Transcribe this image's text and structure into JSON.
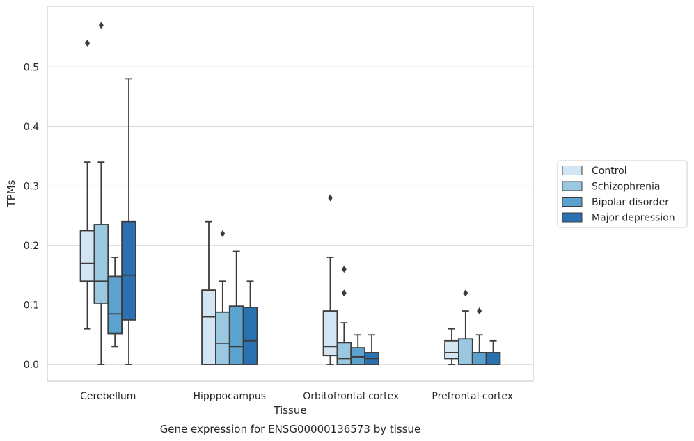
{
  "chart_data": {
    "type": "box",
    "xlabel": "Tissue",
    "ylabel": "TPMs",
    "caption": "Gene expression for ENSG00000136573 by tissue",
    "categories": [
      "Cerebellum",
      "Hipppocampus",
      "Orbitofrontal cortex",
      "Prefrontal cortex"
    ],
    "ylim": [
      -0.028,
      0.602
    ],
    "yticks": [
      0.0,
      0.1,
      0.2,
      0.3,
      0.4,
      0.5
    ],
    "ytick_labels": [
      "0.0",
      "0.1",
      "0.2",
      "0.3",
      "0.4",
      "0.5"
    ],
    "grid": "horizontal",
    "legend_position": "right",
    "series": [
      {
        "name": "Control",
        "color": "#d3e4f3",
        "boxes": [
          {
            "whisker_low": 0.06,
            "q1": 0.14,
            "median": 0.17,
            "q3": 0.225,
            "whisker_high": 0.34,
            "outliers": [
              0.54
            ]
          },
          {
            "whisker_low": 0.0,
            "q1": 0.0,
            "median": 0.08,
            "q3": 0.125,
            "whisker_high": 0.24,
            "outliers": []
          },
          {
            "whisker_low": 0.0,
            "q1": 0.015,
            "median": 0.03,
            "q3": 0.09,
            "whisker_high": 0.18,
            "outliers": [
              0.28
            ]
          },
          {
            "whisker_low": 0.0,
            "q1": 0.01,
            "median": 0.02,
            "q3": 0.04,
            "whisker_high": 0.06,
            "outliers": []
          }
        ]
      },
      {
        "name": "Schizophrenia",
        "color": "#9ac8e0",
        "boxes": [
          {
            "whisker_low": 0.0,
            "q1": 0.103,
            "median": 0.14,
            "q3": 0.235,
            "whisker_high": 0.34,
            "outliers": [
              0.57
            ]
          },
          {
            "whisker_low": 0.0,
            "q1": 0.0,
            "median": 0.035,
            "q3": 0.088,
            "whisker_high": 0.14,
            "outliers": [
              0.22
            ]
          },
          {
            "whisker_low": 0.0,
            "q1": 0.0,
            "median": 0.01,
            "q3": 0.037,
            "whisker_high": 0.07,
            "outliers": [
              0.12,
              0.16
            ]
          },
          {
            "whisker_low": 0.0,
            "q1": 0.0,
            "median": 0.0,
            "q3": 0.043,
            "whisker_high": 0.09,
            "outliers": [
              0.12
            ]
          }
        ]
      },
      {
        "name": "Bipolar disorder",
        "color": "#5ba2cf",
        "boxes": [
          {
            "whisker_low": 0.03,
            "q1": 0.052,
            "median": 0.085,
            "q3": 0.148,
            "whisker_high": 0.18,
            "outliers": []
          },
          {
            "whisker_low": 0.0,
            "q1": 0.0,
            "median": 0.03,
            "q3": 0.098,
            "whisker_high": 0.19,
            "outliers": []
          },
          {
            "whisker_low": 0.0,
            "q1": 0.0,
            "median": 0.013,
            "q3": 0.028,
            "whisker_high": 0.05,
            "outliers": []
          },
          {
            "whisker_low": 0.0,
            "q1": 0.0,
            "median": 0.0,
            "q3": 0.02,
            "whisker_high": 0.05,
            "outliers": [
              0.09
            ]
          }
        ]
      },
      {
        "name": "Major depression",
        "color": "#2a71b2",
        "boxes": [
          {
            "whisker_low": 0.0,
            "q1": 0.075,
            "median": 0.15,
            "q3": 0.24,
            "whisker_high": 0.48,
            "outliers": []
          },
          {
            "whisker_low": 0.0,
            "q1": 0.0,
            "median": 0.04,
            "q3": 0.096,
            "whisker_high": 0.14,
            "outliers": []
          },
          {
            "whisker_low": 0.0,
            "q1": 0.0,
            "median": 0.01,
            "q3": 0.02,
            "whisker_high": 0.05,
            "outliers": []
          },
          {
            "whisker_low": 0.0,
            "q1": 0.0,
            "median": 0.0,
            "q3": 0.02,
            "whisker_high": 0.04,
            "outliers": []
          }
        ]
      }
    ]
  }
}
